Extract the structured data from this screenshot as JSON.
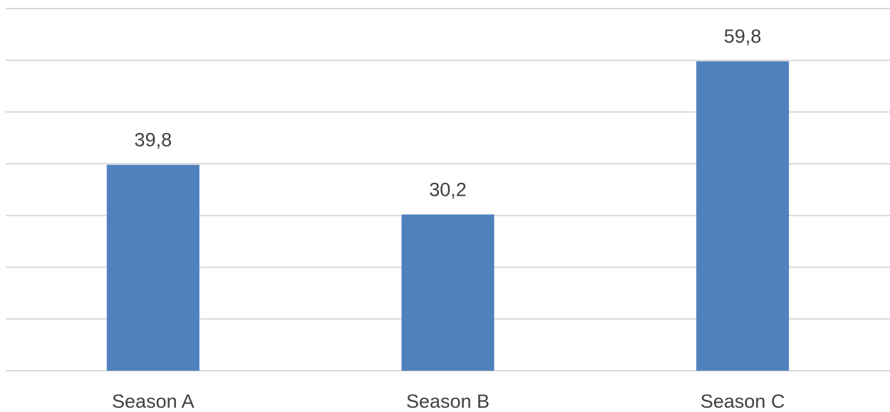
{
  "chart_data": {
    "type": "bar",
    "categories": [
      "Season A",
      "Season B",
      "Season C"
    ],
    "values": [
      39.8,
      30.2,
      59.8
    ],
    "data_labels": [
      "39,8",
      "30,2",
      "59,8"
    ],
    "title": "",
    "xlabel": "",
    "ylabel": "",
    "ylim": [
      0,
      70
    ],
    "grid_step": 10,
    "grid": true,
    "legend": "none",
    "bar_color": "#4f81bd",
    "grid_color": "#d9d9d9",
    "text_color": "#404040"
  }
}
